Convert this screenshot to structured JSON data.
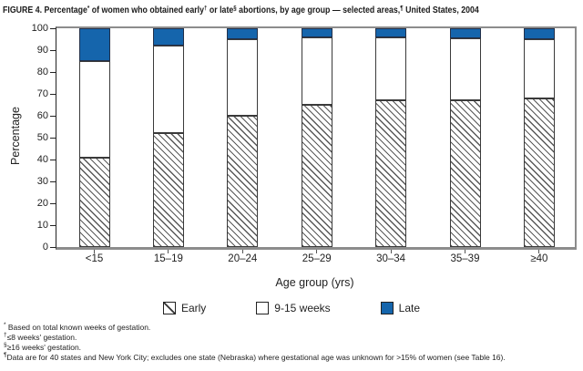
{
  "title": {
    "p1": "FIGURE 4. Percentage",
    "s1": "*",
    "p2": " of women who obtained early",
    "s2": "†",
    "p3": " or late",
    "s3": "§",
    "p4": " abortions, by age group — selected areas,",
    "s4": "¶",
    "p5": " United States, 2004"
  },
  "chart_data": {
    "type": "bar",
    "stacked": true,
    "title": "FIGURE 4. Percentage* of women who obtained early† or late§ abortions, by age group — selected areas,¶ United States, 2004",
    "categories": [
      "<15",
      "15–19",
      "20–24",
      "25–29",
      "30–34",
      "35–39",
      "≥40"
    ],
    "series": [
      {
        "name": "Early",
        "style": "hatch",
        "values": [
          41,
          52,
          60,
          65,
          67,
          67,
          68
        ]
      },
      {
        "name": "9-15 weeks",
        "style": "white",
        "values": [
          44,
          40,
          35,
          31,
          29,
          28.5,
          27
        ]
      },
      {
        "name": "Late",
        "style": "fill",
        "color": "#1565ac",
        "values": [
          15,
          8,
          5,
          4,
          4,
          4.5,
          5
        ]
      }
    ],
    "xlabel": "Age group (yrs)",
    "ylabel": "Percentage",
    "ylim": [
      0,
      100
    ],
    "ytick_step": 10,
    "grid": false,
    "legend_position": "bottom"
  },
  "colors": {
    "late_blue": "#1565ac",
    "axis_gray": "#8c8c8c"
  },
  "footnotes": [
    {
      "sym": "*",
      "text": " Based on total known weeks of gestation."
    },
    {
      "sym": "†",
      "text": "≤8 weeks' gestation."
    },
    {
      "sym": "§",
      "text": "≥16 weeks' gestation."
    },
    {
      "sym": "¶",
      "text": "Data are for 40 states and New York City; excludes one state (Nebraska) where gestational age was unknown for >15% of women (see Table 16)."
    }
  ]
}
